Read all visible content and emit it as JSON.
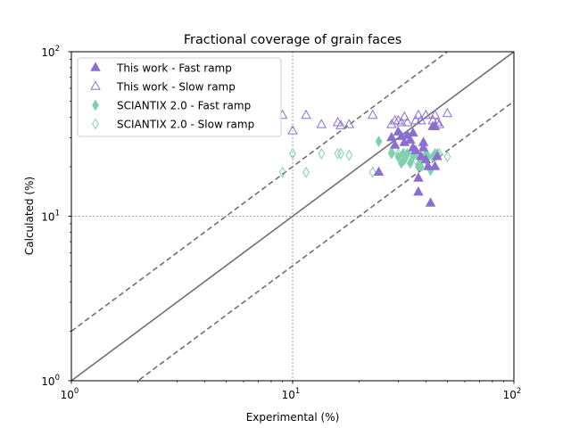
{
  "chart_data": {
    "type": "scatter",
    "title": "Fractional coverage of grain faces",
    "xlabel": "Experimental (%)",
    "ylabel": "Calculated (%)",
    "xscale": "log",
    "yscale": "log",
    "xlim": [
      1,
      100
    ],
    "ylim": [
      1,
      100
    ],
    "x_ticks": [
      {
        "base": "10",
        "exp": "0"
      },
      {
        "base": "10",
        "exp": "1"
      },
      {
        "base": "10",
        "exp": "2"
      }
    ],
    "y_ticks": [
      {
        "base": "10",
        "exp": "0"
      },
      {
        "base": "10",
        "exp": "1"
      },
      {
        "base": "10",
        "exp": "2"
      }
    ],
    "grid": "major, dotted",
    "legend_position": "top-left",
    "reference_lines": [
      {
        "slope": 1.0,
        "style": "solid"
      },
      {
        "slope": 2.0,
        "style": "dashed"
      },
      {
        "slope": 0.5,
        "style": "dashed"
      }
    ],
    "series": [
      {
        "name": "This work - Fast ramp",
        "marker": "triangle",
        "filled": true,
        "color": "#8b6fd0",
        "points": [
          [
            24.5,
            18.5
          ],
          [
            28,
            30
          ],
          [
            29,
            27
          ],
          [
            30,
            32.5
          ],
          [
            31,
            30.5
          ],
          [
            32,
            28
          ],
          [
            33,
            31
          ],
          [
            34,
            29
          ],
          [
            35,
            32
          ],
          [
            35,
            26
          ],
          [
            36,
            25
          ],
          [
            37,
            17
          ],
          [
            37,
            14
          ],
          [
            38,
            23
          ],
          [
            39,
            28
          ],
          [
            39,
            26
          ],
          [
            40,
            22
          ],
          [
            41,
            20
          ],
          [
            42,
            12
          ],
          [
            43,
            35
          ],
          [
            44,
            35
          ],
          [
            44,
            20
          ],
          [
            45,
            23
          ]
        ]
      },
      {
        "name": "This work - Slow ramp",
        "marker": "triangle",
        "filled": false,
        "color": "#8b6fd0",
        "points": [
          [
            9,
            41
          ],
          [
            10,
            33
          ],
          [
            11.5,
            41
          ],
          [
            13.5,
            36
          ],
          [
            16,
            37
          ],
          [
            16.5,
            35.5
          ],
          [
            18,
            36
          ],
          [
            23,
            41
          ],
          [
            28,
            36
          ],
          [
            29,
            38
          ],
          [
            30,
            38
          ],
          [
            31,
            37
          ],
          [
            32,
            40
          ],
          [
            33,
            37
          ],
          [
            36,
            38
          ],
          [
            37,
            41
          ],
          [
            38,
            38
          ],
          [
            40,
            41
          ],
          [
            43,
            38
          ],
          [
            44,
            41
          ],
          [
            45,
            37
          ],
          [
            46,
            36
          ],
          [
            50,
            42
          ]
        ]
      },
      {
        "name": "SCIANTIX 2.0 - Fast ramp",
        "marker": "thin_diamond",
        "filled": true,
        "color": "#7fd1ae",
        "points": [
          [
            24.5,
            28.5
          ],
          [
            28,
            24
          ],
          [
            30,
            23
          ],
          [
            31,
            21
          ],
          [
            31.5,
            24
          ],
          [
            32,
            22
          ],
          [
            33,
            24
          ],
          [
            34,
            21
          ],
          [
            35,
            23
          ],
          [
            36,
            24
          ],
          [
            37,
            20
          ],
          [
            38,
            20
          ],
          [
            38,
            22
          ],
          [
            40,
            24
          ],
          [
            41,
            23
          ],
          [
            42,
            19
          ],
          [
            43,
            23
          ],
          [
            44,
            24
          ],
          [
            45,
            24
          ]
        ]
      },
      {
        "name": "SCIANTIX 2.0 - Slow ramp",
        "marker": "thin_diamond",
        "filled": false,
        "color": "#7fd1ae",
        "points": [
          [
            9,
            18.5
          ],
          [
            10,
            24
          ],
          [
            11.5,
            18.5
          ],
          [
            13.5,
            24
          ],
          [
            16,
            24
          ],
          [
            16.5,
            24
          ],
          [
            18,
            23.5
          ],
          [
            23,
            18.5
          ],
          [
            28,
            24.5
          ],
          [
            30,
            24
          ],
          [
            32,
            24
          ],
          [
            34,
            23
          ],
          [
            36,
            22
          ],
          [
            40,
            22
          ],
          [
            44,
            23
          ],
          [
            46,
            24
          ],
          [
            50,
            23
          ]
        ]
      }
    ]
  }
}
